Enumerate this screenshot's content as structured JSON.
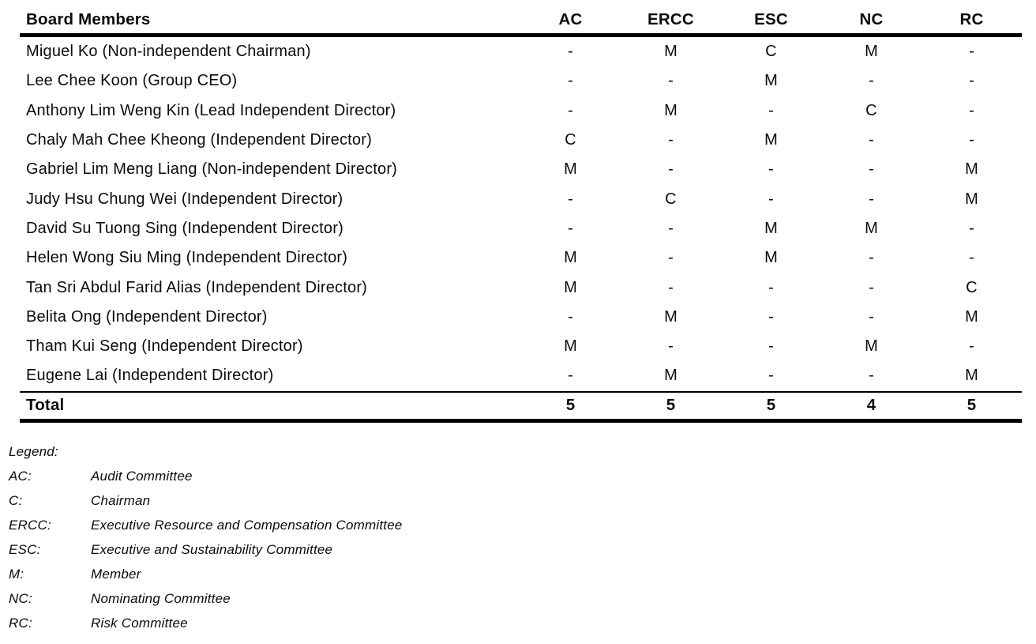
{
  "table": {
    "header": {
      "board_members": "Board Members",
      "committees": [
        "AC",
        "ERCC",
        "ESC",
        "NC",
        "RC"
      ]
    },
    "rows": [
      {
        "name": "Miguel Ko (Non-independent Chairman)",
        "values": [
          "-",
          "M",
          "C",
          "M",
          "-"
        ]
      },
      {
        "name": "Lee Chee Koon (Group CEO)",
        "values": [
          "-",
          "-",
          "M",
          "-",
          "-"
        ]
      },
      {
        "name": "Anthony Lim Weng Kin (Lead Independent Director)",
        "values": [
          "-",
          "M",
          "-",
          "C",
          "-"
        ]
      },
      {
        "name": "Chaly Mah Chee Kheong (Independent Director)",
        "values": [
          "C",
          "-",
          "M",
          "-",
          "-"
        ]
      },
      {
        "name": "Gabriel Lim Meng Liang (Non-independent Director)",
        "values": [
          "M",
          "-",
          "-",
          "-",
          "M"
        ]
      },
      {
        "name": "Judy Hsu Chung Wei (Independent Director)",
        "values": [
          "-",
          "C",
          "-",
          "-",
          "M"
        ]
      },
      {
        "name": "David Su Tuong Sing (Independent Director)",
        "values": [
          "-",
          "-",
          "M",
          "M",
          "-"
        ]
      },
      {
        "name": "Helen Wong Siu Ming (Independent Director)",
        "values": [
          "M",
          "-",
          "M",
          "-",
          "-"
        ]
      },
      {
        "name": "Tan Sri Abdul Farid Alias (Independent Director)",
        "values": [
          "M",
          "-",
          "-",
          "-",
          "C"
        ]
      },
      {
        "name": "Belita Ong (Independent Director)",
        "values": [
          "-",
          "M",
          "-",
          "-",
          "M"
        ]
      },
      {
        "name": "Tham Kui Seng (Independent Director)",
        "values": [
          "M",
          "-",
          "-",
          "M",
          "-"
        ]
      },
      {
        "name": "Eugene Lai (Independent Director)",
        "values": [
          "-",
          "M",
          "-",
          "-",
          "M"
        ]
      }
    ],
    "total": {
      "label": "Total",
      "values": [
        "5",
        "5",
        "5",
        "4",
        "5"
      ]
    }
  },
  "legend": {
    "title": "Legend:",
    "entries": [
      {
        "abbr": "AC:",
        "description": "Audit Committee"
      },
      {
        "abbr": "C:",
        "description": "Chairman"
      },
      {
        "abbr": "ERCC:",
        "description": "Executive Resource and Compensation Committee"
      },
      {
        "abbr": "ESC:",
        "description": "Executive and Sustainability Committee"
      },
      {
        "abbr": "M:",
        "description": "Member"
      },
      {
        "abbr": "NC:",
        "description": "Nominating Committee"
      },
      {
        "abbr": "RC:",
        "description": "Risk Committee"
      }
    ]
  }
}
